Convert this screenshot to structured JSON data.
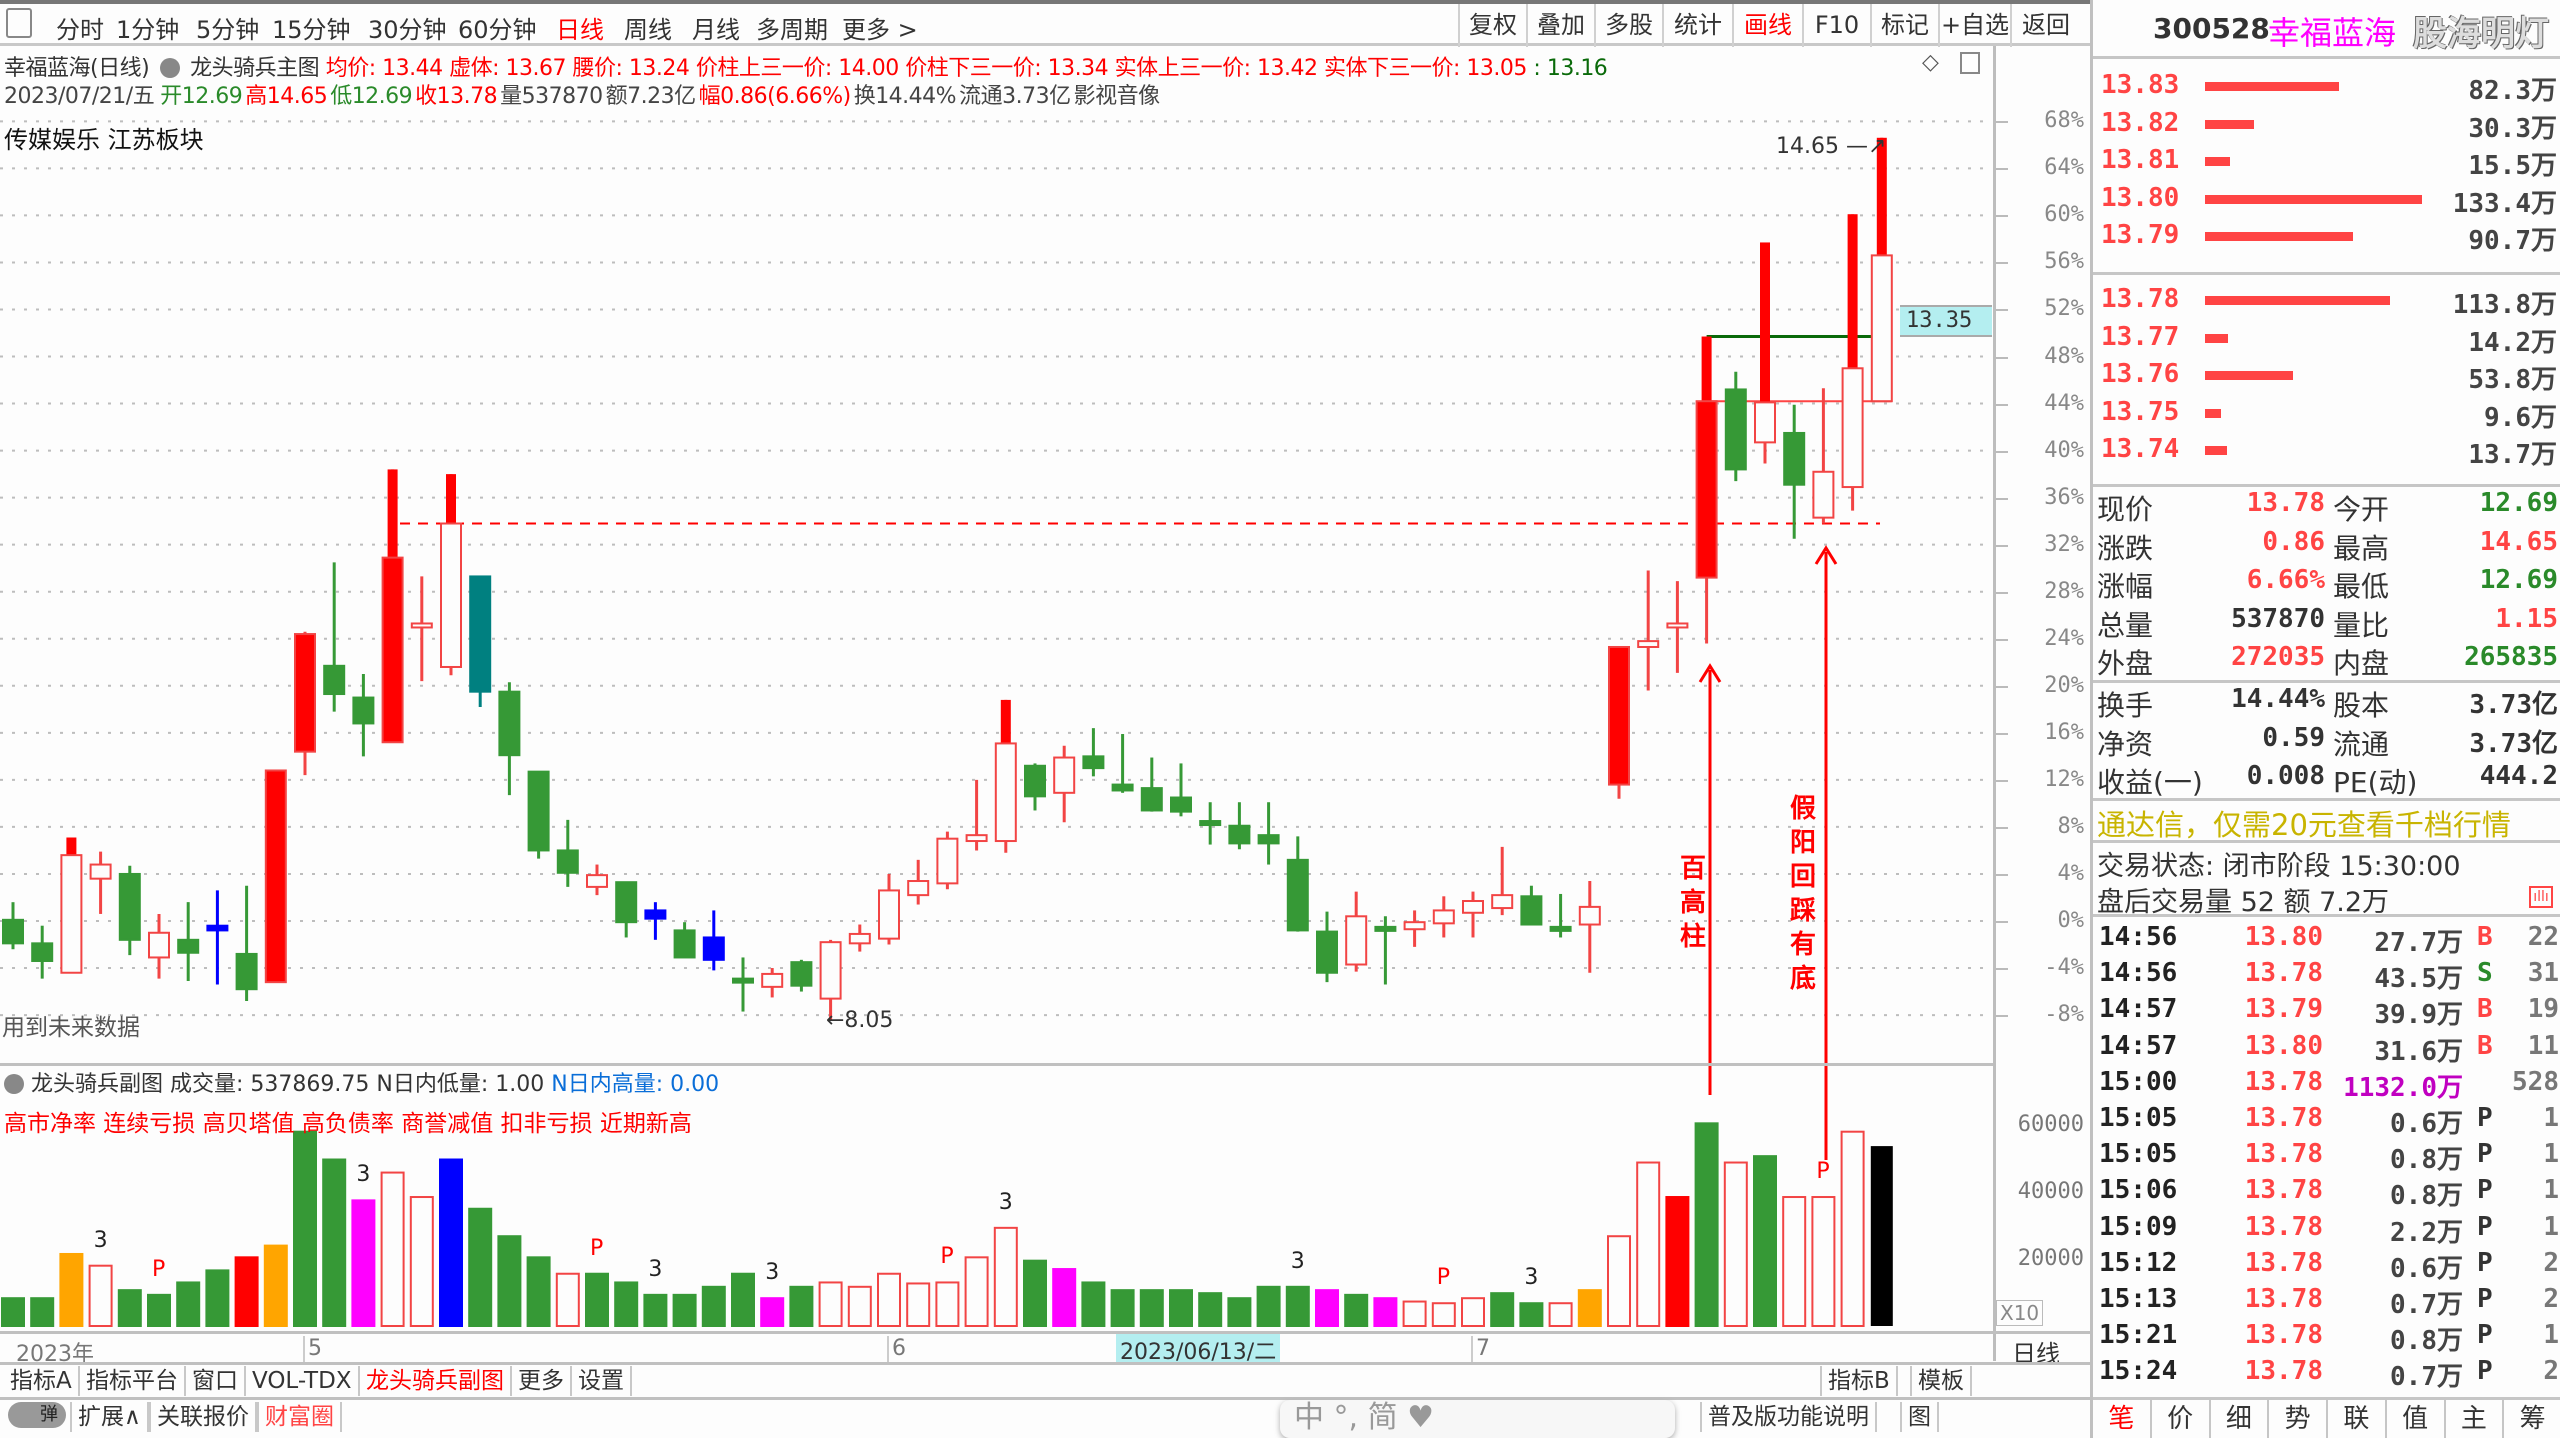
{
  "toolbar": {
    "periods": [
      "分时",
      "1分钟",
      "5分钟",
      "15分钟",
      "30分钟",
      "60分钟",
      "日线",
      "周线",
      "月线",
      "多周期",
      "更多 >"
    ],
    "active_period": "日线",
    "right_buttons": [
      "复权",
      "叠加",
      "多股",
      "统计",
      "画线",
      "F10",
      "标记",
      "+自选",
      "返回"
    ],
    "active_right": "画线"
  },
  "header": {
    "title": "幸福蓝海(日线)",
    "indicator": "龙头骑兵主图",
    "ind_values": [
      {
        "t": "均价: 13.44",
        "c": "red"
      },
      {
        "t": "虚体: 13.67",
        "c": "red"
      },
      {
        "t": "腰价: 13.24",
        "c": "red"
      },
      {
        "t": "价柱上三一价: 14.00",
        "c": "red"
      },
      {
        "t": "价柱下三一价: 13.34",
        "c": "red"
      },
      {
        "t": "实体上三一价: 13.42",
        "c": "red"
      },
      {
        "t": "实体下三一价: 13.05",
        "c": "red"
      },
      {
        "t": ": 13.16",
        "c": "dkgreen"
      }
    ],
    "line2": [
      {
        "t": "2023/07/21/五",
        "c": "gray"
      },
      {
        "t": "开12.69",
        "c": "green"
      },
      {
        "t": "高14.65",
        "c": "red"
      },
      {
        "t": "低12.69",
        "c": "green"
      },
      {
        "t": "收13.78",
        "c": "red"
      },
      {
        "t": "量537870",
        "c": "gray"
      },
      {
        "t": "额7.23亿",
        "c": "gray"
      },
      {
        "t": "幅0.86(6.66%)",
        "c": "red"
      },
      {
        "t": "换14.44%",
        "c": "gray"
      },
      {
        "t": "流通3.73亿",
        "c": "gray"
      },
      {
        "t": "影视音像",
        "c": "gray"
      }
    ],
    "sector": "传媒娱乐 江苏板块",
    "future_note": "用到未来数据"
  },
  "chart_data": [
    {
      "type": "candlestick",
      "ylabel_unit": "%",
      "yticks": [
        68,
        64,
        60,
        56,
        52,
        48,
        44,
        40,
        36,
        32,
        28,
        24,
        20,
        16,
        12,
        8,
        4,
        0,
        -4,
        -8
      ],
      "ylim": [
        -10,
        70
      ],
      "grid": true,
      "current_price_label": "13.35",
      "current_price_pct": 51,
      "high_label": "14.65",
      "low_label": "8.05",
      "candles_ohlc_pct": [
        [
          0.1,
          1.6,
          -2.4,
          -1.9
        ],
        [
          -1.9,
          -0.4,
          -4.9,
          -3.4
        ],
        [
          -4.4,
          7.1,
          -4.4,
          5.6
        ],
        [
          3.6,
          5.9,
          0.6,
          4.8
        ],
        [
          4.0,
          4.7,
          -2.9,
          -1.6
        ],
        [
          -3.1,
          0.6,
          -4.9,
          -1.0
        ],
        [
          -1.6,
          1.6,
          -5.1,
          -2.7
        ],
        [
          -0.4,
          2.6,
          -5.4,
          -0.8
        ],
        [
          -2.8,
          3.0,
          -6.8,
          -5.8
        ],
        [
          -5.2,
          12.8,
          -5.2,
          12.8
        ],
        [
          14.4,
          24.6,
          12.4,
          24.4
        ],
        [
          21.7,
          30.5,
          17.8,
          19.3
        ],
        [
          19.0,
          21.0,
          14.0,
          16.8
        ],
        [
          15.2,
          38.4,
          15.2,
          30.9
        ],
        [
          25.3,
          29.3,
          20.4,
          25.3
        ],
        [
          21.6,
          38.0,
          20.9,
          33.8
        ],
        [
          29.3,
          29.3,
          18.2,
          19.5
        ],
        [
          19.5,
          20.3,
          10.7,
          14.1
        ],
        [
          12.7,
          12.7,
          5.3,
          6.0
        ],
        [
          6.0,
          8.6,
          2.9,
          4.1
        ],
        [
          2.9,
          4.8,
          2.2,
          3.9
        ],
        [
          3.3,
          3.3,
          -1.4,
          -0.1
        ],
        [
          0.9,
          1.6,
          -1.6,
          0.2
        ],
        [
          -0.8,
          -0.1,
          -3.1,
          -3.1
        ],
        [
          -1.4,
          0.9,
          -4.2,
          -3.3
        ],
        [
          -4.9,
          -3.1,
          -7.7,
          -5.1
        ],
        [
          -5.6,
          -4.0,
          -6.5,
          -4.5
        ],
        [
          -3.5,
          -3.3,
          -6.0,
          -5.5
        ],
        [
          -6.6,
          -1.6,
          -8.4,
          -1.8
        ],
        [
          -1.9,
          -0.3,
          -2.6,
          -1.1
        ],
        [
          -1.5,
          4.0,
          -2.0,
          2.6
        ],
        [
          2.2,
          5.2,
          1.4,
          3.4
        ],
        [
          3.2,
          7.6,
          2.7,
          7.0
        ],
        [
          6.8,
          12.0,
          6.0,
          7.3
        ],
        [
          6.8,
          18.8,
          5.8,
          15.1
        ],
        [
          13.2,
          13.4,
          9.4,
          10.6
        ],
        [
          10.9,
          14.9,
          8.4,
          13.9
        ],
        [
          14.0,
          16.4,
          12.3,
          13.0
        ],
        [
          11.6,
          15.9,
          10.9,
          11.1
        ],
        [
          11.3,
          13.9,
          9.3,
          9.4
        ],
        [
          10.5,
          13.4,
          8.9,
          9.3
        ],
        [
          8.5,
          10.1,
          6.5,
          8.2
        ],
        [
          8.1,
          10.1,
          6.1,
          6.6
        ],
        [
          7.3,
          10.1,
          4.8,
          6.6
        ],
        [
          5.2,
          7.2,
          -0.9,
          -0.8
        ],
        [
          -0.9,
          0.8,
          -5.2,
          -4.4
        ],
        [
          -3.7,
          2.5,
          -4.3,
          0.4
        ],
        [
          -0.5,
          0.4,
          -5.4,
          -0.7
        ],
        [
          -0.7,
          0.9,
          -2.2,
          -0.1
        ],
        [
          -0.2,
          2.1,
          -1.4,
          0.9
        ],
        [
          0.7,
          2.5,
          -1.4,
          1.7
        ],
        [
          1.1,
          6.3,
          0.5,
          2.2
        ],
        [
          2.1,
          3.0,
          -0.3,
          -0.3
        ],
        [
          -0.5,
          2.3,
          -1.4,
          -0.6
        ],
        [
          -0.3,
          3.4,
          -4.4,
          1.2
        ],
        [
          11.6,
          23.3,
          10.4,
          23.3
        ],
        [
          23.3,
          29.8,
          19.6,
          23.8
        ],
        [
          25.1,
          28.9,
          21.1,
          25.3
        ],
        [
          29.2,
          49.7,
          23.6,
          44.2
        ],
        [
          45.2,
          46.7,
          37.4,
          38.4
        ],
        [
          40.7,
          57.7,
          38.9,
          44.1
        ],
        [
          41.5,
          43.9,
          32.5,
          37.1
        ],
        [
          34.3,
          45.3,
          33.8,
          38.2
        ],
        [
          36.9,
          60.1,
          34.9,
          47.0
        ],
        [
          44.2,
          66.6,
          44.2,
          56.6
        ]
      ],
      "special_colors": {
        "7": "blue",
        "16": "teal",
        "22": "blue",
        "24": "blue"
      },
      "solid_up": [
        9,
        10,
        13,
        55,
        58
      ],
      "thick_upper": [
        2,
        13,
        15,
        34,
        55,
        58,
        60,
        63,
        64
      ],
      "support_line_pct": 33.8,
      "resistance_line_pct": 49.7,
      "mid_line_pct": 44.2,
      "annotations": [
        "百高柱",
        "假阳回踩有底"
      ]
    },
    {
      "type": "bar",
      "name": "龙头骑兵副图",
      "yticks": [
        60000,
        40000,
        20000
      ],
      "ylim": [
        0,
        62000
      ],
      "scale_label": "X10",
      "volumes": [
        8300,
        8300,
        21500,
        18000,
        10700,
        9300,
        13000,
        16600,
        20500,
        24000,
        58000,
        49700,
        37500,
        45800,
        38500,
        49700,
        35000,
        26800,
        20500,
        15600,
        15600,
        13000,
        9300,
        9300,
        11700,
        15600,
        8300,
        11700,
        13000,
        11700,
        15600,
        12700,
        13000,
        20500,
        29300,
        19500,
        17000,
        13000,
        10700,
        10700,
        10700,
        9800,
        8300,
        11700,
        11700,
        10700,
        9300,
        8300,
        7300,
        6800,
        8300,
        9800,
        6800,
        6800,
        10700,
        26800,
        48800,
        38500,
        60500,
        48800,
        50700,
        38500,
        38500,
        58000,
        53700
      ],
      "colors": "ggorggggRoggmrrbgggrggggggmgrrrrrrrgmggggggggmgmrrrggrorrRgrgrrr",
      "markers": [
        [
          3,
          "3"
        ],
        [
          5,
          "P"
        ],
        [
          12,
          "3"
        ],
        [
          20,
          "P"
        ],
        [
          22,
          "3"
        ],
        [
          26,
          "3"
        ],
        [
          32,
          "P"
        ],
        [
          34,
          "3"
        ],
        [
          44,
          "3"
        ],
        [
          49,
          "P"
        ],
        [
          52,
          "3"
        ],
        [
          62,
          "P"
        ]
      ],
      "xaxis": [
        {
          "i": 0,
          "t": "2023年"
        },
        {
          "i": 10,
          "t": "5"
        },
        {
          "i": 30,
          "t": "6"
        },
        {
          "i": 50,
          "t": "7"
        }
      ],
      "cursor_date": "2023/06/13/二"
    }
  ],
  "colors": {
    "up": "#ff0000",
    "up_line": "#f24444",
    "down": "#369936",
    "teal": "#008080",
    "blue": "#0000ff",
    "orange": "#ffa500",
    "magenta": "#ff00ff",
    "cursor_bg": "#b4eef0",
    "promo": "#c8b400",
    "vol_value": "#c000c0"
  },
  "sub": {
    "title": "龙头骑兵副图",
    "vol": "成交量: 537869.75",
    "low": "N日内低量: 1.00",
    "high": "N日内高量: 0.00",
    "flags": "高市净率 连续亏损 高贝塔值 高负债率 商誉减值 扣非亏损 近期新高",
    "period": "日线"
  },
  "bottom": {
    "row1": [
      "指标A",
      "指标平台",
      "窗口",
      "VOL-TDX",
      "龙头骑兵副图",
      "更多",
      "设置"
    ],
    "row1_active": "龙头骑兵副图",
    "row1_right": [
      "指标B",
      "模板"
    ],
    "row2": [
      "扩展∧",
      "关联报价",
      "财富圈"
    ],
    "row2_active": "财富圈",
    "row2_right": [
      "普及版功能说明",
      "图"
    ],
    "toggle_label": "弹",
    "ime": "中 °, 简"
  },
  "panel": {
    "code": "300528",
    "name": "幸福蓝海",
    "logo": "股海明灯",
    "asks": [
      [
        "13.83",
        "82.3万",
        82.3
      ],
      [
        "13.82",
        "30.3万",
        30.3
      ],
      [
        "13.81",
        "15.5万",
        15.5
      ],
      [
        "13.80",
        "133.4万",
        133.4
      ],
      [
        "13.79",
        "90.7万",
        90.7
      ]
    ],
    "bids": [
      [
        "13.78",
        "113.8万",
        113.8
      ],
      [
        "13.77",
        "14.2万",
        14.2
      ],
      [
        "13.76",
        "53.8万",
        53.8
      ],
      [
        "13.75",
        "9.6万",
        9.6
      ],
      [
        "13.74",
        "13.7万",
        13.7
      ]
    ],
    "stats1": [
      [
        "现价",
        "13.78",
        "r",
        "今开",
        "12.69",
        "g"
      ],
      [
        "涨跌",
        "0.86",
        "r",
        "最高",
        "14.65",
        "r"
      ],
      [
        "涨幅",
        "6.66%",
        "r",
        "最低",
        "12.69",
        "g"
      ],
      [
        "总量",
        "537870",
        "k",
        "量比",
        "1.15",
        "r"
      ],
      [
        "外盘",
        "272035",
        "r",
        "内盘",
        "265835",
        "g"
      ]
    ],
    "stats2": [
      [
        "换手",
        "14.44%",
        "k",
        "股本",
        "3.73亿",
        "k"
      ],
      [
        "净资",
        "0.59",
        "k",
        "流通",
        "3.73亿",
        "k"
      ],
      [
        "收益(一)",
        "0.008",
        "k",
        "PE(动)",
        "444.2",
        "k"
      ]
    ],
    "promo": "通达信，仅需20元查看千档行情",
    "status": "交易状态: 闭市阶段 15:30:00",
    "after": "盘后交易量 52 额 7.2万",
    "ticks": [
      [
        "14:56",
        "13.80",
        "27.7万",
        "B",
        "22"
      ],
      [
        "14:56",
        "13.78",
        "43.5万",
        "S",
        "31"
      ],
      [
        "14:57",
        "13.79",
        "39.9万",
        "B",
        "19"
      ],
      [
        "14:57",
        "13.80",
        "31.6万",
        "B",
        "11"
      ],
      [
        "15:00",
        "13.78",
        "1132.0万",
        "",
        "528"
      ],
      [
        "15:05",
        "13.78",
        "0.6万",
        "P",
        "1"
      ],
      [
        "15:05",
        "13.78",
        "0.8万",
        "P",
        "1"
      ],
      [
        "15:06",
        "13.78",
        "0.8万",
        "P",
        "1"
      ],
      [
        "15:09",
        "13.78",
        "2.2万",
        "P",
        "1"
      ],
      [
        "15:12",
        "13.78",
        "0.6万",
        "P",
        "2"
      ],
      [
        "15:13",
        "13.78",
        "0.7万",
        "P",
        "2"
      ],
      [
        "15:21",
        "13.78",
        "0.8万",
        "P",
        "1"
      ],
      [
        "15:24",
        "13.78",
        "0.7万",
        "P",
        "2"
      ]
    ],
    "tabs": [
      "笔",
      "价",
      "细",
      "势",
      "联",
      "值",
      "主",
      "筹"
    ],
    "active_tab": "笔"
  }
}
